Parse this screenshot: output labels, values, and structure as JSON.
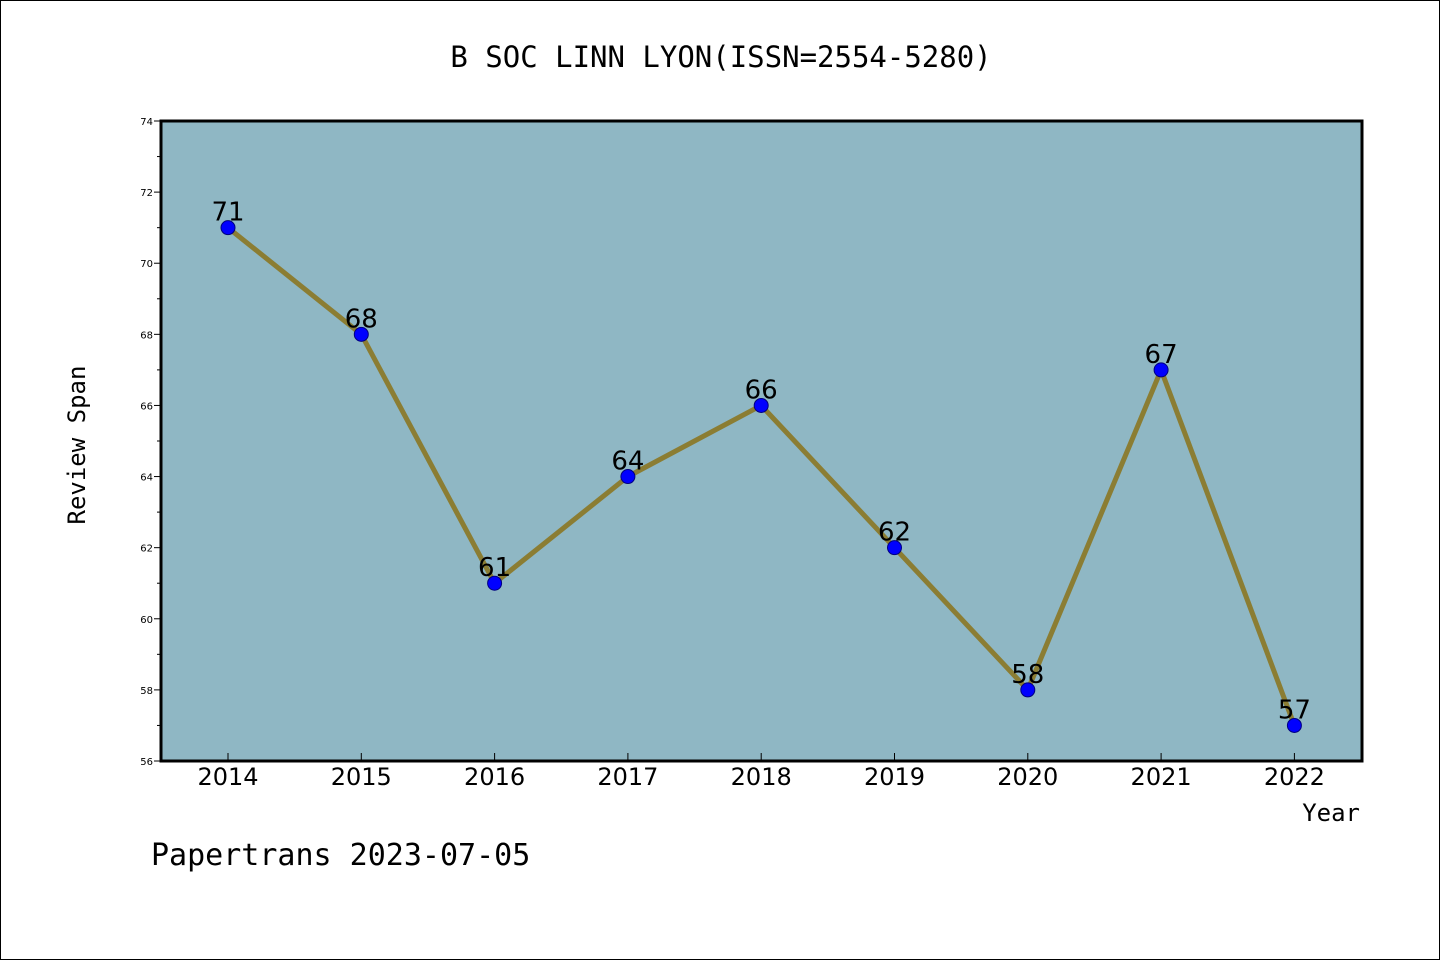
{
  "footer": {
    "text": "Papertrans 2023-07-05"
  },
  "colors": {
    "plot_background": "#8fb7c4",
    "line": "#8b7d33",
    "marker": "#0000ff",
    "marker_edge": "#000080",
    "axes": "#000000"
  },
  "chart_data": {
    "type": "line",
    "title": "B SOC LINN LYON(ISSN=2554-5280)",
    "xlabel": "Year",
    "ylabel": "Review Span",
    "categories": [
      "2014",
      "2015",
      "2016",
      "2017",
      "2018",
      "2019",
      "2020",
      "2021",
      "2022"
    ],
    "values": [
      71,
      68,
      61,
      64,
      66,
      62,
      58,
      67,
      57
    ],
    "data_labels": [
      "71",
      "68",
      "61",
      "64",
      "66",
      "62",
      "58",
      "67",
      "57"
    ],
    "ylim": [
      56,
      74
    ],
    "yticks": [
      56,
      58,
      60,
      62,
      64,
      66,
      68,
      70,
      72,
      74
    ],
    "ytick_labels": [
      "56",
      "58",
      "60",
      "62",
      "64",
      "66",
      "68",
      "70",
      "72",
      "74"
    ],
    "grid": false,
    "legend": "none"
  }
}
